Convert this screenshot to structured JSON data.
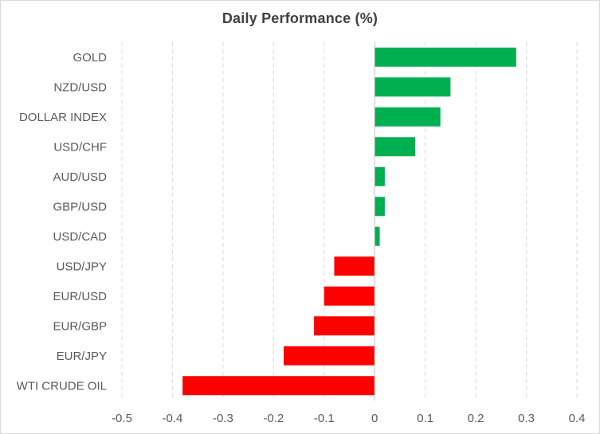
{
  "chart_data": {
    "type": "bar",
    "orientation": "horizontal",
    "title": "Daily Performance (%)",
    "xlabel": "",
    "ylabel": "",
    "categories": [
      "GOLD",
      "NZD/USD",
      "DOLLAR INDEX",
      "USD/CHF",
      "AUD/USD",
      "GBP/USD",
      "USD/CAD",
      "USD/JPY",
      "EUR/USD",
      "EUR/GBP",
      "EUR/JPY",
      "WTI CRUDE OIL"
    ],
    "values": [
      0.28,
      0.15,
      0.13,
      0.08,
      0.02,
      0.02,
      0.01,
      -0.08,
      -0.1,
      -0.12,
      -0.18,
      -0.38
    ],
    "xlim": [
      -0.5,
      0.4
    ],
    "xticks": [
      "-0.5",
      "-0.4",
      "-0.3",
      "-0.2",
      "-0.1",
      "0",
      "0.1",
      "0.2",
      "0.3",
      "0.4"
    ],
    "grid": "vertical-dashed",
    "legend": "none",
    "colors": {
      "positive": "#00b050",
      "negative": "#ff0000",
      "grid": "#d9d9d9",
      "axis": "#bfbfbf",
      "text": "#595959"
    }
  }
}
